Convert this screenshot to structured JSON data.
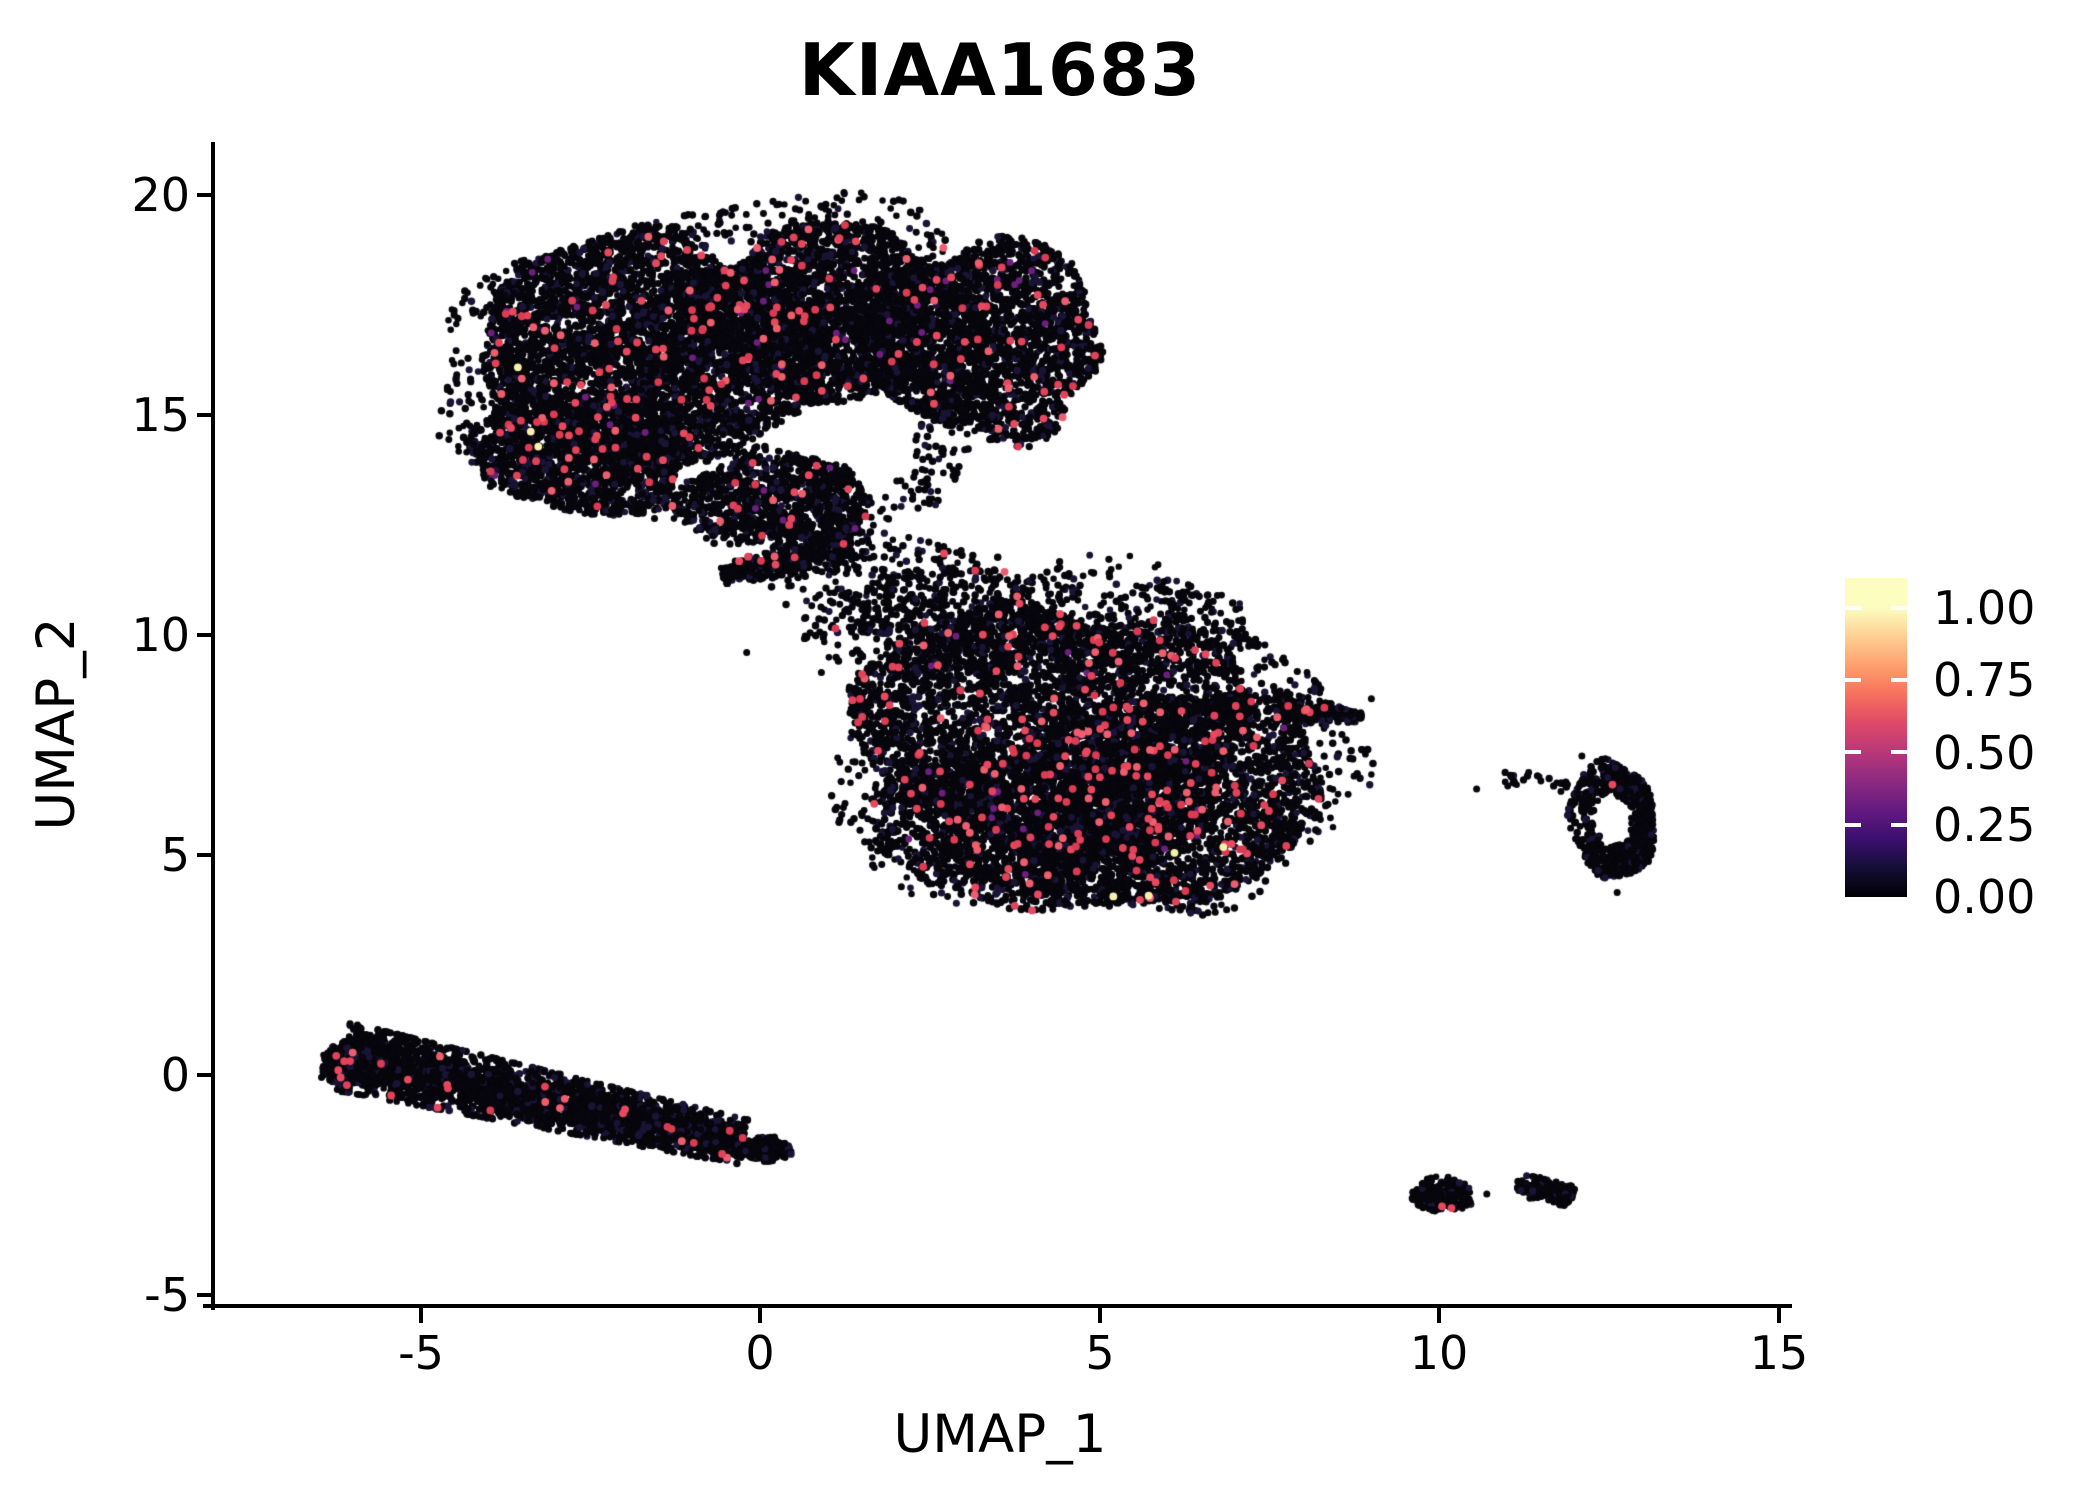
{
  "title": "KIAA1683",
  "axes": {
    "x": {
      "label": "UMAP_1",
      "tick_labels": [
        "-5",
        "0",
        "5",
        "10",
        "15"
      ],
      "tick_values": [
        -5,
        0,
        5,
        10,
        15
      ]
    },
    "y": {
      "label": "UMAP_2",
      "tick_labels": [
        "20",
        "15",
        "10",
        "5",
        "0",
        "-5"
      ],
      "tick_values": [
        20,
        15,
        10,
        5,
        0,
        -5
      ]
    }
  },
  "legend": {
    "labels": [
      "1.00",
      "0.75",
      "0.50",
      "0.25",
      "0.00"
    ],
    "values": [
      1.0,
      0.75,
      0.5,
      0.25,
      0.0
    ],
    "colormap_name": "magma",
    "gradient": [
      {
        "p": 0,
        "c": "#000004"
      },
      {
        "p": 9.1,
        "c": "#140e36"
      },
      {
        "p": 18.1,
        "c": "#3b0f70"
      },
      {
        "p": 27.2,
        "c": "#641a80"
      },
      {
        "p": 36.2,
        "c": "#8c2981"
      },
      {
        "p": 45.3,
        "c": "#b73779"
      },
      {
        "p": 54.4,
        "c": "#de4968"
      },
      {
        "p": 63.4,
        "c": "#f7705c"
      },
      {
        "p": 72.5,
        "c": "#fe9f6d"
      },
      {
        "p": 81.6,
        "c": "#fecf92"
      },
      {
        "p": 90.6,
        "c": "#fcfdbf"
      },
      {
        "p": 100,
        "c": "#fcfdbf"
      }
    ]
  },
  "chart_data": {
    "type": "scatter",
    "title": "KIAA1683",
    "xlabel": "UMAP_1",
    "ylabel": "UMAP_2",
    "xlim": [
      -8.06,
      15.18
    ],
    "ylim": [
      -5.2,
      21.2
    ],
    "grid": false,
    "legend_position": "right",
    "color_scale": {
      "min": 0.0,
      "max": 1.0,
      "low_color": "#000004",
      "high_color": "#fcfdbf"
    },
    "colors": {
      "point_black": "#07060c",
      "point_black_alt": "#191436",
      "point_accent": "#6d1f7e",
      "point_red_palette": [
        "#e8495f",
        "#e2425a",
        "#ee5e6e",
        "#db3b53"
      ],
      "point_yellow": "#f6f0ad"
    },
    "clusters": [
      {
        "id": "top-left-lobe",
        "type": "blob",
        "cx": -1.7,
        "cy": 16.4,
        "rx": 2.55,
        "ry": 2.65,
        "n": 4300,
        "red": 0.021
      },
      {
        "id": "top-mid-lobe",
        "type": "blob",
        "cx": 0.9,
        "cy": 17.3,
        "rx": 1.8,
        "ry": 2.05,
        "n": 2700,
        "red": 0.021
      },
      {
        "id": "top-right-lobe",
        "type": "blob",
        "cx": 3.3,
        "cy": 16.7,
        "rx": 1.75,
        "ry": 2.25,
        "n": 2500,
        "red": 0.018
      },
      {
        "id": "top-lower-left",
        "type": "blob",
        "cx": -2.55,
        "cy": 14.1,
        "rx": 1.65,
        "ry": 1.35,
        "n": 1500,
        "red": 0.02
      },
      {
        "id": "top-lower-tongue",
        "type": "blob",
        "cx": 0.2,
        "cy": 13.1,
        "rx": 1.45,
        "ry": 1.05,
        "n": 950,
        "red": 0.02
      },
      {
        "id": "top-halo",
        "type": "blob",
        "halo": true,
        "cx": -0.4,
        "cy": 16.0,
        "rx": 4.0,
        "ry": 3.7,
        "n": 650,
        "red": 0.008
      },
      {
        "id": "wedge-connector",
        "type": "band",
        "p1": [
          1.35,
          12.15
        ],
        "p2": [
          -0.55,
          11.35
        ],
        "sigma": 13,
        "taper": 0.7,
        "n": 520,
        "red": 0.015
      },
      {
        "id": "connector-sparse",
        "type": "blob",
        "cx": 1.9,
        "cy": 10.9,
        "rx": 1.7,
        "ry": 1.5,
        "n": 300,
        "red": 0.012
      },
      {
        "id": "mid-core",
        "type": "blob",
        "cx": 4.3,
        "cy": 7.7,
        "rx": 2.85,
        "ry": 3.05,
        "n": 4700,
        "red": 0.027
      },
      {
        "id": "mid-right",
        "type": "blob",
        "cx": 6.3,
        "cy": 6.5,
        "rx": 2.0,
        "ry": 2.35,
        "n": 2300,
        "red": 0.027
      },
      {
        "id": "mid-bottom-left",
        "type": "blob",
        "cx": 3.6,
        "cy": 5.6,
        "rx": 1.9,
        "ry": 1.7,
        "n": 1400,
        "red": 0.024
      },
      {
        "id": "mid-right-tail",
        "type": "band",
        "p1": [
          7.6,
          8.3
        ],
        "p2": [
          8.85,
          8.15
        ],
        "sigma": 9,
        "taper": 0.75,
        "n": 260,
        "red": 0.02
      },
      {
        "id": "mid-top-sparse",
        "type": "blob",
        "cx": 3.0,
        "cy": 10.4,
        "rx": 1.7,
        "ry": 1.2,
        "n": 430,
        "red": 0.018
      },
      {
        "id": "mid-top-sparse2",
        "type": "blob",
        "cx": 5.9,
        "cy": 10.1,
        "rx": 1.4,
        "ry": 1.05,
        "n": 270,
        "red": 0.014
      },
      {
        "id": "mid-halo",
        "type": "blob",
        "halo": true,
        "cx": 4.9,
        "cy": 7.4,
        "rx": 3.7,
        "ry": 3.7,
        "n": 520,
        "red": 0.008
      },
      {
        "id": "mid-bottom-tip",
        "type": "blob",
        "cx": 5.2,
        "cy": 4.35,
        "rx": 1.25,
        "ry": 0.55,
        "n": 320,
        "red": 0.012
      },
      {
        "id": "ring-right",
        "type": "ring",
        "cx": 12.55,
        "cy": 5.8,
        "rx": 0.63,
        "ry": 1.32,
        "hole": 0.45,
        "n": 720,
        "red": 0
      },
      {
        "id": "ring-trail",
        "type": "band",
        "p1": [
          10.95,
          6.78
        ],
        "p2": [
          11.95,
          6.6
        ],
        "sigma": 5,
        "taper": 0,
        "n": 26,
        "red": 0
      },
      {
        "id": "band-lower-left",
        "type": "band",
        "p1": [
          -6.15,
          0.42
        ],
        "p2": [
          -0.25,
          -1.52
        ],
        "sigma": 16,
        "taper": 0.35,
        "n": 3400,
        "red": 0.0095
      },
      {
        "id": "band-left-cap",
        "type": "blob",
        "cx": -5.95,
        "cy": 0.28,
        "rx": 0.55,
        "ry": 0.5,
        "n": 420,
        "red": 0.01
      },
      {
        "id": "band-right-tip",
        "type": "blob",
        "cx": 0.05,
        "cy": -1.68,
        "rx": 0.42,
        "ry": 0.28,
        "n": 150,
        "red": 0.013
      },
      {
        "id": "small-bottom-right-1",
        "type": "blob",
        "cx": 10.05,
        "cy": -2.72,
        "rx": 0.45,
        "ry": 0.4,
        "n": 200,
        "red": 0
      },
      {
        "id": "small-bottom-right-2",
        "type": "band",
        "p1": [
          11.15,
          -2.52
        ],
        "p2": [
          11.98,
          -2.72
        ],
        "sigma": 5.5,
        "taper": 0,
        "n": 170,
        "red": 0
      }
    ],
    "extra_points": {
      "black": [
        [
          6.7,
          3.7
        ],
        [
          10.7,
          -2.7
        ],
        [
          9.7,
          -2.95
        ],
        [
          12.62,
          4.15
        ],
        [
          12.1,
          7.25
        ],
        [
          9.0,
          8.55
        ],
        [
          -0.2,
          9.6
        ],
        [
          0.9,
          9.15
        ],
        [
          10.55,
          6.5
        ]
      ],
      "red": [
        [
          12.55,
          6.6
        ],
        [
          10.04,
          -2.98
        ],
        [
          10.18,
          -3.02
        ]
      ],
      "yellow": [
        [
          -3.57,
          16.08
        ],
        [
          -3.38,
          14.62
        ],
        [
          -3.27,
          14.28
        ],
        [
          6.1,
          5.05
        ],
        [
          6.82,
          5.18
        ],
        [
          5.2,
          4.06
        ],
        [
          5.72,
          4.08
        ]
      ]
    }
  }
}
